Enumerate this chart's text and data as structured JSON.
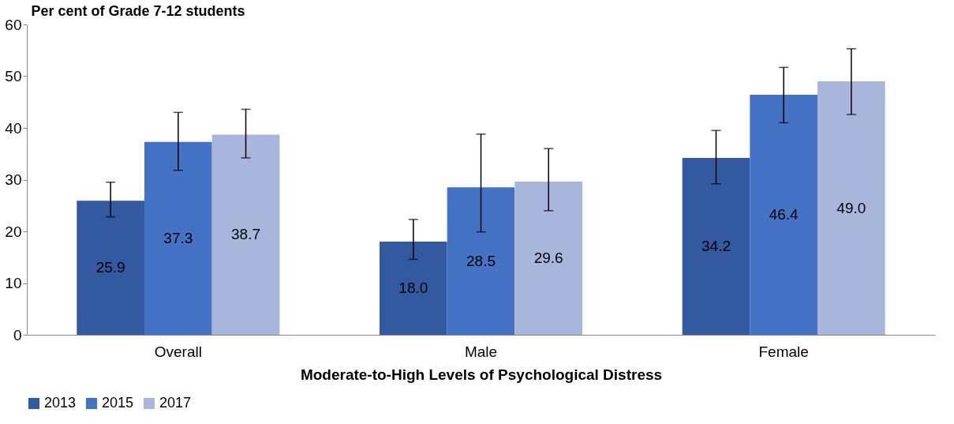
{
  "chart_data": {
    "type": "bar",
    "ylabel": "Per cent of Grade 7-12 students",
    "xlabel": "Moderate-to-High Levels of Psychological Distress",
    "categories": [
      "Overall",
      "Male",
      "Female"
    ],
    "series": [
      {
        "name": "2013",
        "color": "#335aa0",
        "values": [
          25.9,
          18.0,
          34.2
        ],
        "value_labels": [
          "25.9",
          "18.0",
          "34.2"
        ],
        "errors": [
          [
            22.8,
            29.5
          ],
          [
            14.6,
            22.3
          ],
          [
            29.2,
            39.5
          ]
        ]
      },
      {
        "name": "2015",
        "color": "#4472c4",
        "values": [
          37.3,
          28.5,
          46.4
        ],
        "value_labels": [
          "37.3",
          "28.5",
          "46.4"
        ],
        "errors": [
          [
            31.8,
            43.0
          ],
          [
            19.9,
            38.8
          ],
          [
            41.0,
            51.7
          ]
        ]
      },
      {
        "name": "2017",
        "color": "#a9b6dc",
        "values": [
          38.7,
          29.6,
          49.0
        ],
        "value_labels": [
          "38.7",
          "29.6",
          "49.0"
        ],
        "errors": [
          [
            34.2,
            43.6
          ],
          [
            24.0,
            36.0
          ],
          [
            42.6,
            55.3
          ]
        ]
      }
    ],
    "ylim": [
      0,
      60
    ],
    "yticks": [
      0,
      10,
      20,
      30,
      40,
      50,
      60
    ],
    "legend": "bottom",
    "grid": false
  }
}
